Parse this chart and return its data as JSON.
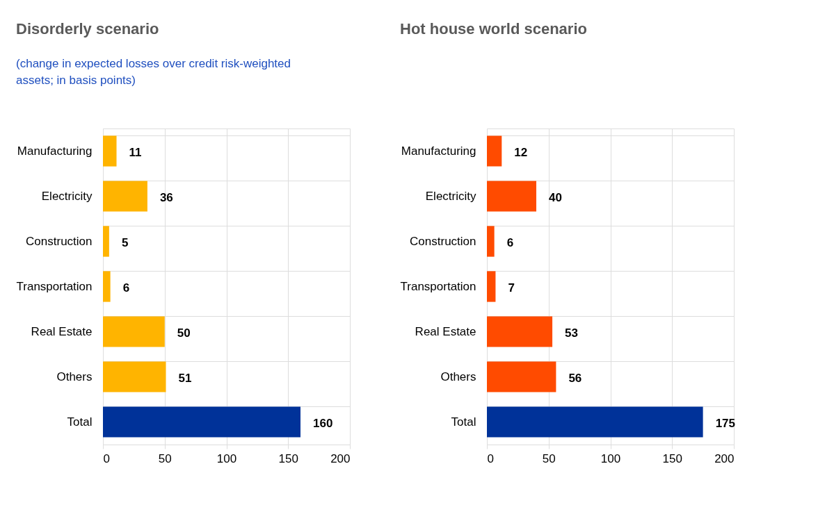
{
  "chart_data": [
    {
      "type": "bar",
      "orientation": "horizontal",
      "title": "Disorderly scenario",
      "subtitle": "(change in expected losses over credit risk-weighted assets; in basis points)",
      "categories": [
        "Manufacturing",
        "Electricity",
        "Construction",
        "Transportation",
        "Real Estate",
        "Others",
        "Total"
      ],
      "values": [
        11,
        36,
        5,
        6,
        50,
        51,
        160
      ],
      "colors": [
        "#ffb400",
        "#ffb400",
        "#ffb400",
        "#ffb400",
        "#ffb400",
        "#ffb400",
        "#003299"
      ],
      "xlim": [
        0,
        200
      ],
      "xticks": [
        0,
        50,
        100,
        150,
        200
      ],
      "grid": true,
      "data_labels": true
    },
    {
      "type": "bar",
      "orientation": "horizontal",
      "title": "Hot house world scenario",
      "categories": [
        "Manufacturing",
        "Electricity",
        "Construction",
        "Transportation",
        "Real Estate",
        "Others",
        "Total"
      ],
      "values": [
        12,
        40,
        6,
        7,
        53,
        56,
        175
      ],
      "colors": [
        "#ff4b00",
        "#ff4b00",
        "#ff4b00",
        "#ff4b00",
        "#ff4b00",
        "#ff4b00",
        "#003299"
      ],
      "xlim": [
        0,
        200
      ],
      "xticks": [
        0,
        50,
        100,
        150,
        200
      ],
      "grid": true,
      "data_labels": true
    }
  ]
}
